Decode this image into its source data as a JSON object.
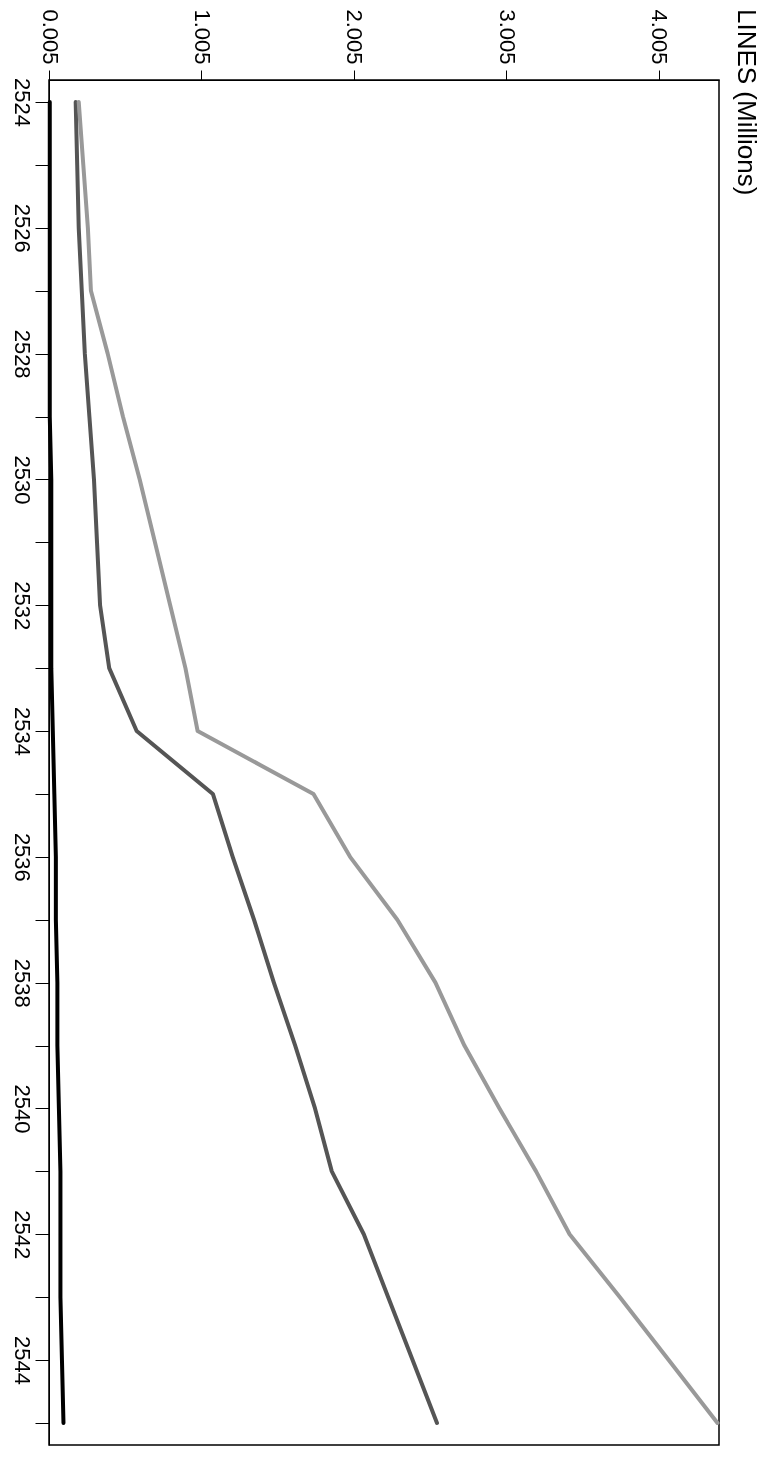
{
  "chart_data": {
    "type": "line",
    "title": "LINES (Millions)",
    "orientation": "horizontal",
    "categories": [
      "2524",
      null,
      "2526",
      null,
      "2528",
      null,
      "2530",
      null,
      "2532",
      null,
      "2534",
      null,
      "2536",
      null,
      "2538",
      null,
      "2540",
      null,
      "2542",
      null,
      "2544",
      null
    ],
    "xlim": [
      0.005,
      4.4
    ],
    "xticks": [
      0.005,
      1.005,
      2.005,
      3.005,
      4.005
    ],
    "series": [
      {
        "color": "#000000",
        "values": [
          0.01,
          0.01,
          0.01,
          0.01,
          0.01,
          0.01,
          0.02,
          0.02,
          0.02,
          0.02,
          0.03,
          0.04,
          0.05,
          0.05,
          0.06,
          0.06,
          0.07,
          0.08,
          0.08,
          0.08,
          0.09,
          0.1
        ]
      },
      {
        "color": "#555555",
        "values": [
          0.18,
          0.19,
          0.2,
          0.22,
          0.24,
          0.27,
          0.3,
          0.32,
          0.34,
          0.4,
          0.58,
          1.08,
          1.21,
          1.35,
          1.48,
          1.62,
          1.75,
          1.86,
          2.07,
          2.23,
          2.39,
          2.55
        ]
      },
      {
        "color": "#999999",
        "values": [
          0.2,
          0.23,
          0.26,
          0.28,
          0.39,
          0.49,
          0.6,
          0.7,
          0.8,
          0.9,
          0.98,
          1.74,
          1.98,
          2.29,
          2.54,
          2.73,
          2.96,
          3.2,
          3.42,
          3.75,
          4.07,
          4.39
        ]
      }
    ]
  }
}
